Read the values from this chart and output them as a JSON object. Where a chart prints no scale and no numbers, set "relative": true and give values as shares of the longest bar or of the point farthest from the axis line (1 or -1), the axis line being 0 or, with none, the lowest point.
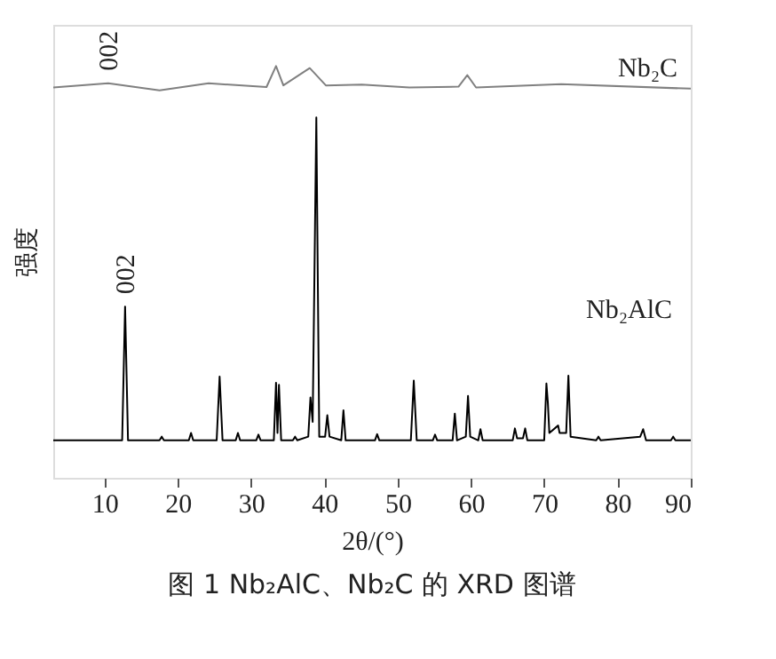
{
  "chart_data": {
    "type": "line",
    "relative": true,
    "xlabel": "2θ/(°)",
    "ylabel": "强度",
    "title": "图 1   Nb₂AlC、Nb₂C 的 XRD 图谱",
    "xlim": [
      3,
      90
    ],
    "xticks": [
      10,
      20,
      30,
      40,
      50,
      60,
      70,
      80,
      90
    ],
    "grid": false,
    "legend": false,
    "marker": "none",
    "line_style": "solid",
    "annotations": [
      {
        "text": "002",
        "x": 12.8,
        "y": 0.416
      },
      {
        "text": "002",
        "x": 10.5,
        "y": 0.958
      }
    ],
    "series": [
      {
        "name": "Nb₂C",
        "color": "#808080",
        "x": [
          3,
          10.5,
          17.5,
          24.2,
          32.1,
          33.4,
          34.4,
          38.0,
          40.2,
          45.1,
          51.6,
          58.3,
          59.5,
          60.7,
          72.3,
          90
        ],
        "values": [
          0.948,
          0.958,
          0.941,
          0.958,
          0.949,
          1,
          0.953,
          0.995,
          0.953,
          0.955,
          0.948,
          0.95,
          0.978,
          0.948,
          0.956,
          0.945
        ]
      },
      {
        "name": "Nb₂AlC",
        "color": "#000000",
        "x": [
          3,
          12.4,
          12.8,
          13.2,
          17.5,
          17.8,
          18.1,
          21.5,
          21.8,
          22.1,
          25.3,
          25.7,
          26.1,
          27.9,
          28.2,
          28.5,
          30.7,
          31.0,
          31.3,
          33.1,
          33.4,
          33.6,
          33.8,
          34.1,
          35.7,
          36.0,
          36.3,
          37.8,
          38.1,
          38.4,
          38.9,
          39.3,
          40.1,
          40.4,
          40.7,
          42.3,
          42.6,
          42.9,
          46.9,
          47.2,
          47.5,
          51.8,
          52.2,
          52.6,
          54.8,
          55.1,
          55.4,
          57.5,
          57.8,
          58.1,
          59.3,
          59.6,
          59.9,
          61.0,
          61.3,
          61.6,
          65.7,
          66.0,
          66.3,
          67.1,
          67.4,
          67.7,
          70.0,
          70.3,
          70.5,
          70.7,
          71.9,
          72.1,
          73.0,
          73.3,
          73.6,
          77.1,
          77.4,
          77.7,
          83.1,
          83.5,
          83.9,
          87.3,
          87.6,
          87.9,
          90
        ],
        "values": [
          0.091,
          0.091,
          0.416,
          0.091,
          0.091,
          0.1,
          0.091,
          0.091,
          0.109,
          0.091,
          0.091,
          0.246,
          0.091,
          0.091,
          0.109,
          0.091,
          0.091,
          0.105,
          0.091,
          0.091,
          0.231,
          0.109,
          0.226,
          0.091,
          0.091,
          0.1,
          0.091,
          0.1,
          0.195,
          0.136,
          0.875,
          0.1,
          0.1,
          0.152,
          0.1,
          0.091,
          0.164,
          0.091,
          0.091,
          0.106,
          0.091,
          0.091,
          0.236,
          0.091,
          0.091,
          0.105,
          0.091,
          0.091,
          0.156,
          0.091,
          0.1,
          0.199,
          0.1,
          0.091,
          0.118,
          0.091,
          0.091,
          0.12,
          0.096,
          0.096,
          0.12,
          0.091,
          0.091,
          0.229,
          0.182,
          0.109,
          0.127,
          0.109,
          0.109,
          0.248,
          0.1,
          0.091,
          0.1,
          0.091,
          0.1,
          0.118,
          0.091,
          0.091,
          0.1,
          0.091,
          0.091
        ]
      }
    ]
  }
}
